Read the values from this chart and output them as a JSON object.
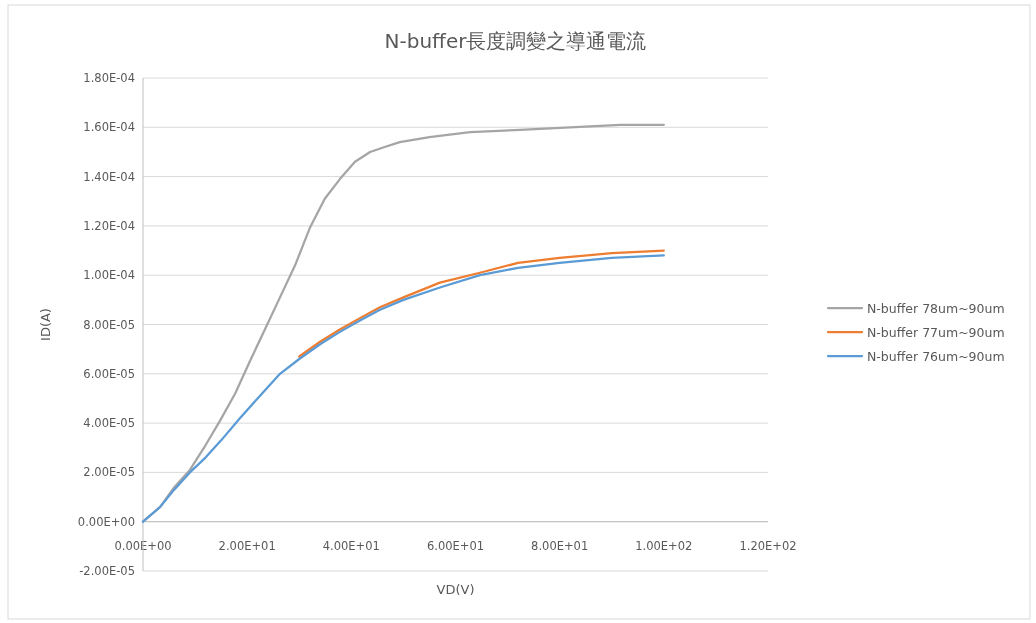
{
  "chart_data": {
    "type": "line",
    "title": "N-buffer長度調變之導通電流",
    "xlabel": "VD(V)",
    "ylabel": "ID(A)",
    "xlim": [
      0,
      120
    ],
    "ylim": [
      -2e-05,
      0.00018
    ],
    "xticks": [
      {
        "value": 0,
        "label": "0.00E+00"
      },
      {
        "value": 20,
        "label": "2.00E+01"
      },
      {
        "value": 40,
        "label": "4.00E+01"
      },
      {
        "value": 60,
        "label": "6.00E+01"
      },
      {
        "value": 80,
        "label": "8.00E+01"
      },
      {
        "value": 100,
        "label": "1.00E+02"
      },
      {
        "value": 120,
        "label": "1.20E+02"
      }
    ],
    "yticks": [
      {
        "value": -2e-05,
        "label": "-2.00E-05"
      },
      {
        "value": 0,
        "label": "0.00E+00"
      },
      {
        "value": 2e-05,
        "label": "2.00E-05"
      },
      {
        "value": 4e-05,
        "label": "4.00E-05"
      },
      {
        "value": 6e-05,
        "label": "6.00E-05"
      },
      {
        "value": 8e-05,
        "label": "8.00E-05"
      },
      {
        "value": 0.0001,
        "label": "1.00E-04"
      },
      {
        "value": 0.00012,
        "label": "1.20E-04"
      },
      {
        "value": 0.00014,
        "label": "1.40E-04"
      },
      {
        "value": 0.00016,
        "label": "1.60E-04"
      },
      {
        "value": 0.00018,
        "label": "1.80E-04"
      }
    ],
    "grid": "y",
    "legend": "right",
    "marker": "none",
    "line_style": "solid",
    "series": [
      {
        "name": "N-buffer 78um~90um",
        "color": "#a5a5a5",
        "x": [
          0,
          3.3,
          6,
          9,
          12,
          14.8,
          17.7,
          20.5,
          23.4,
          26.3,
          29.2,
          32,
          34.9,
          37.8,
          40.7,
          43.6,
          46.4,
          49.3,
          55,
          62.8,
          72.4,
          82,
          91.6,
          100
        ],
        "values": [
          0,
          6e-06,
          1.4e-05,
          2.1e-05,
          3.1e-05,
          4.1e-05,
          5.2e-05,
          6.5e-05,
          7.8e-05,
          9.1e-05,
          0.000104,
          0.000119,
          0.000131,
          0.000139,
          0.000146,
          0.00015,
          0.000152,
          0.000154,
          0.000156,
          0.000158,
          0.000159,
          0.00016,
          0.000161,
          0.000161
        ]
      },
      {
        "name": "N-buffer 77um~90um",
        "color": "#ed7d31",
        "x": [
          30,
          34,
          37.8,
          42,
          45.5,
          50,
          57,
          64.7,
          72,
          80,
          90,
          100
        ],
        "values": [
          6.7e-05,
          7.3e-05,
          7.8e-05,
          8.3e-05,
          8.7e-05,
          9.1e-05,
          9.7e-05,
          0.000101,
          0.000105,
          0.000107,
          0.000109,
          0.00011
        ]
      },
      {
        "name": "N-buffer 76um~90um",
        "color": "#5b9bd5",
        "x": [
          0,
          3.3,
          6,
          9,
          12,
          15,
          18.6,
          22,
          26.3,
          30,
          34,
          37.8,
          42,
          45.5,
          50,
          57,
          64.7,
          72,
          80,
          90,
          100
        ],
        "values": [
          0,
          6e-06,
          1.3e-05,
          2e-05,
          2.6e-05,
          3.3e-05,
          4.2e-05,
          5e-05,
          6e-05,
          6.6e-05,
          7.2e-05,
          7.7e-05,
          8.2e-05,
          8.6e-05,
          9e-05,
          9.5e-05,
          0.0001,
          0.000103,
          0.000105,
          0.000107,
          0.000108
        ]
      }
    ]
  }
}
